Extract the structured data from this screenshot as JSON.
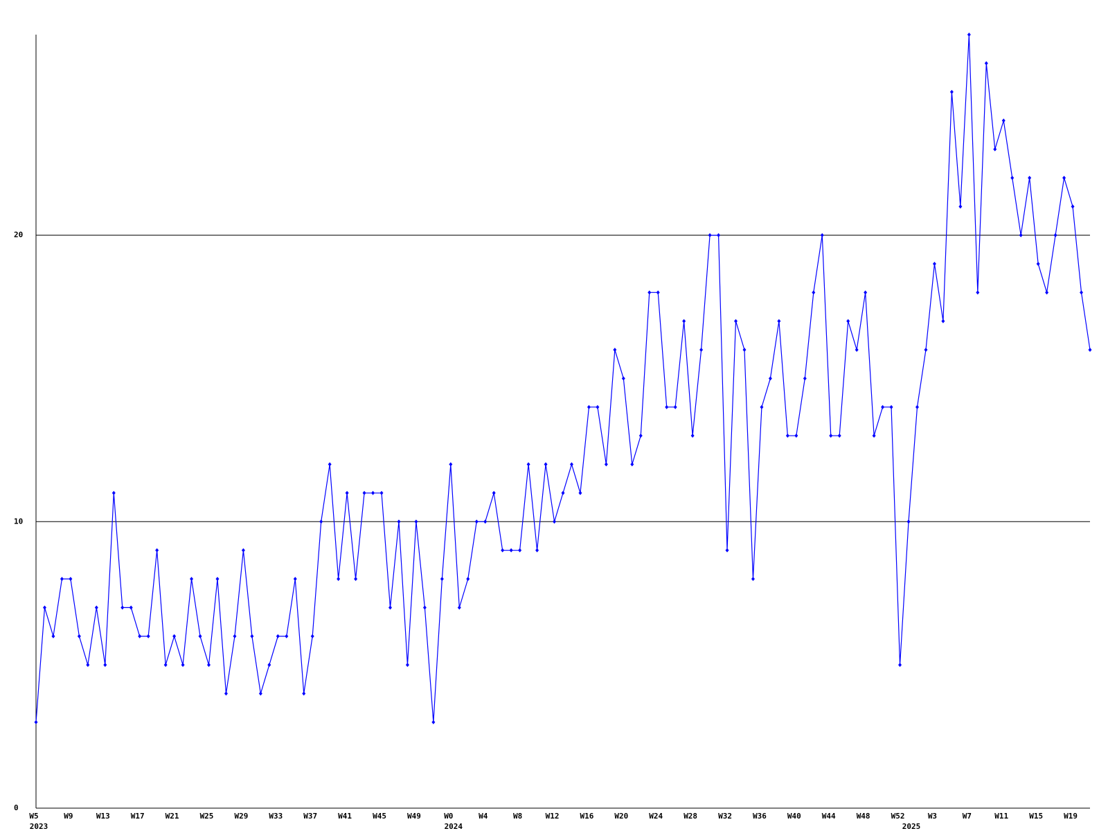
{
  "chart_data": {
    "type": "line",
    "categories": [
      "W5",
      null,
      null,
      null,
      "W9",
      null,
      null,
      null,
      "W13",
      null,
      null,
      null,
      "W17",
      null,
      null,
      null,
      "W21",
      null,
      null,
      null,
      "W25",
      null,
      null,
      null,
      "W29",
      null,
      null,
      null,
      "W33",
      null,
      null,
      null,
      "W37",
      null,
      null,
      null,
      "W41",
      null,
      null,
      null,
      "W45",
      null,
      null,
      null,
      "W49",
      null,
      null,
      null,
      "W0",
      null,
      null,
      null,
      "W4",
      null,
      null,
      null,
      "W8",
      null,
      null,
      null,
      "W12",
      null,
      null,
      null,
      "W16",
      null,
      null,
      null,
      "W20",
      null,
      null,
      null,
      "W24",
      null,
      null,
      null,
      "W28",
      null,
      null,
      null,
      "W32",
      null,
      null,
      null,
      "W36",
      null,
      null,
      null,
      "W40",
      null,
      null,
      null,
      "W44",
      null,
      null,
      null,
      "W48",
      null,
      null,
      null,
      "W52",
      null,
      null,
      null,
      "W3",
      null,
      null,
      null,
      "W7",
      null,
      null,
      null,
      "W11",
      null,
      null,
      null,
      "W15",
      null,
      null,
      null,
      "W19",
      null,
      null
    ],
    "years": [
      "2023",
      null,
      null,
      null,
      null,
      null,
      null,
      null,
      null,
      null,
      null,
      null,
      null,
      null,
      null,
      null,
      null,
      null,
      null,
      null,
      null,
      null,
      null,
      null,
      null,
      null,
      null,
      null,
      null,
      null,
      null,
      null,
      null,
      null,
      null,
      null,
      null,
      null,
      null,
      null,
      null,
      null,
      null,
      null,
      null,
      null,
      null,
      null,
      "2024",
      null,
      null,
      null,
      null,
      null,
      null,
      null,
      null,
      null,
      null,
      null,
      null,
      null,
      null,
      null,
      null,
      null,
      null,
      null,
      null,
      null,
      null,
      null,
      null,
      null,
      null,
      null,
      null,
      null,
      null,
      null,
      null,
      null,
      null,
      null,
      null,
      null,
      null,
      null,
      null,
      null,
      null,
      null,
      null,
      null,
      null,
      null,
      null,
      null,
      null,
      null,
      null,
      "2025",
      null,
      null,
      null,
      null,
      null,
      null,
      null,
      null,
      null,
      null,
      null,
      null,
      null,
      null,
      null,
      null,
      null,
      null,
      null,
      null,
      null
    ],
    "values": [
      3,
      7,
      6,
      8,
      8,
      6,
      5,
      7,
      5,
      11,
      7,
      7,
      6,
      6,
      9,
      5,
      6,
      5,
      8,
      6,
      5,
      8,
      4,
      6,
      9,
      6,
      4,
      5,
      6,
      6,
      8,
      4,
      6,
      10,
      12,
      8,
      11,
      8,
      11,
      11,
      11,
      7,
      10,
      5,
      10,
      7,
      3,
      8,
      12,
      7,
      8,
      10,
      10,
      11,
      9,
      9,
      9,
      12,
      9,
      12,
      10,
      11,
      12,
      11,
      14,
      14,
      12,
      16,
      15,
      12,
      13,
      18,
      18,
      14,
      14,
      17,
      13,
      16,
      20,
      20,
      9,
      17,
      16,
      8,
      14,
      15,
      17,
      13,
      13,
      15,
      18,
      20,
      13,
      13,
      17,
      16,
      18,
      13,
      14,
      14,
      5,
      10,
      14,
      16,
      19,
      17,
      25,
      21,
      27,
      18,
      26,
      23,
      24,
      22,
      20,
      22,
      19,
      18,
      20,
      22,
      21,
      18,
      16
    ],
    "color": "#0000ff",
    "ylim": [
      0,
      27
    ],
    "yticks": [
      0,
      10,
      20
    ],
    "grid": true
  }
}
